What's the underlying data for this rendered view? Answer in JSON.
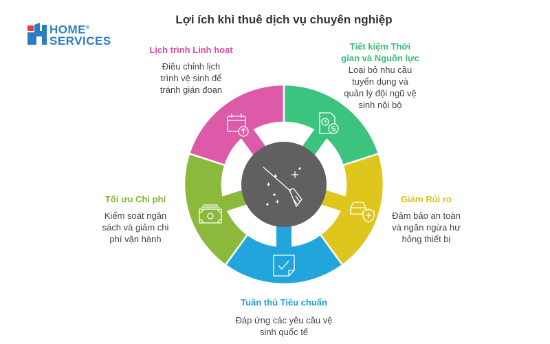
{
  "title": "Lợi ích khi thuê dịch vụ chuyên nghiệp",
  "logo": {
    "line1": "HOME",
    "line2": "SERVICES",
    "registered": "®"
  },
  "colors": {
    "pink": "#dd5aa8",
    "green": "#3cc47f",
    "yellow": "#dfc61d",
    "blue": "#21a5dc",
    "olive": "#8bb93c",
    "center": "#606060",
    "logo_blue": "#2a7dc2",
    "logo_red": "#e0403a"
  },
  "center_icon": "broom-sparkle-icon",
  "benefits": [
    {
      "heading": "Lịch trình Linh hoạt",
      "lines": [
        "Điều chỉnh lịch",
        "trình vệ sinh để",
        "tránh gián đoạn"
      ],
      "icon": "calendar-arrow-up-icon",
      "color": "#d94fa3"
    },
    {
      "heading_lines": [
        "Tiết kiệm Thời",
        "gian và Nguồn lực"
      ],
      "lines": [
        "Loại bỏ nhu cầu",
        "tuyển dụng và",
        "quản lý đội ngũ vệ",
        "sinh nội bộ"
      ],
      "icon": "document-clock-dollar-icon",
      "color": "#37bd78"
    },
    {
      "heading": "Giảm Rủi ro",
      "lines": [
        "Đảm bảo an toàn",
        "và ngăn ngừa hư",
        "hỏng thiết bị"
      ],
      "icon": "car-shield-icon",
      "color": "#dcc21a"
    },
    {
      "heading": "Tuân thủ Tiêu chuẩn",
      "lines": [
        "Đáp ứng các yêu cầu vệ",
        "sinh quốc tế"
      ],
      "icon": "document-check-icon",
      "color": "#1fa0d8"
    },
    {
      "heading": "Tối ưu Chi phí",
      "lines": [
        "Kiểm soát ngân",
        "sách và giảm chi",
        "phí vận hành"
      ],
      "icon": "money-stack-icon",
      "color": "#84b32f"
    }
  ]
}
